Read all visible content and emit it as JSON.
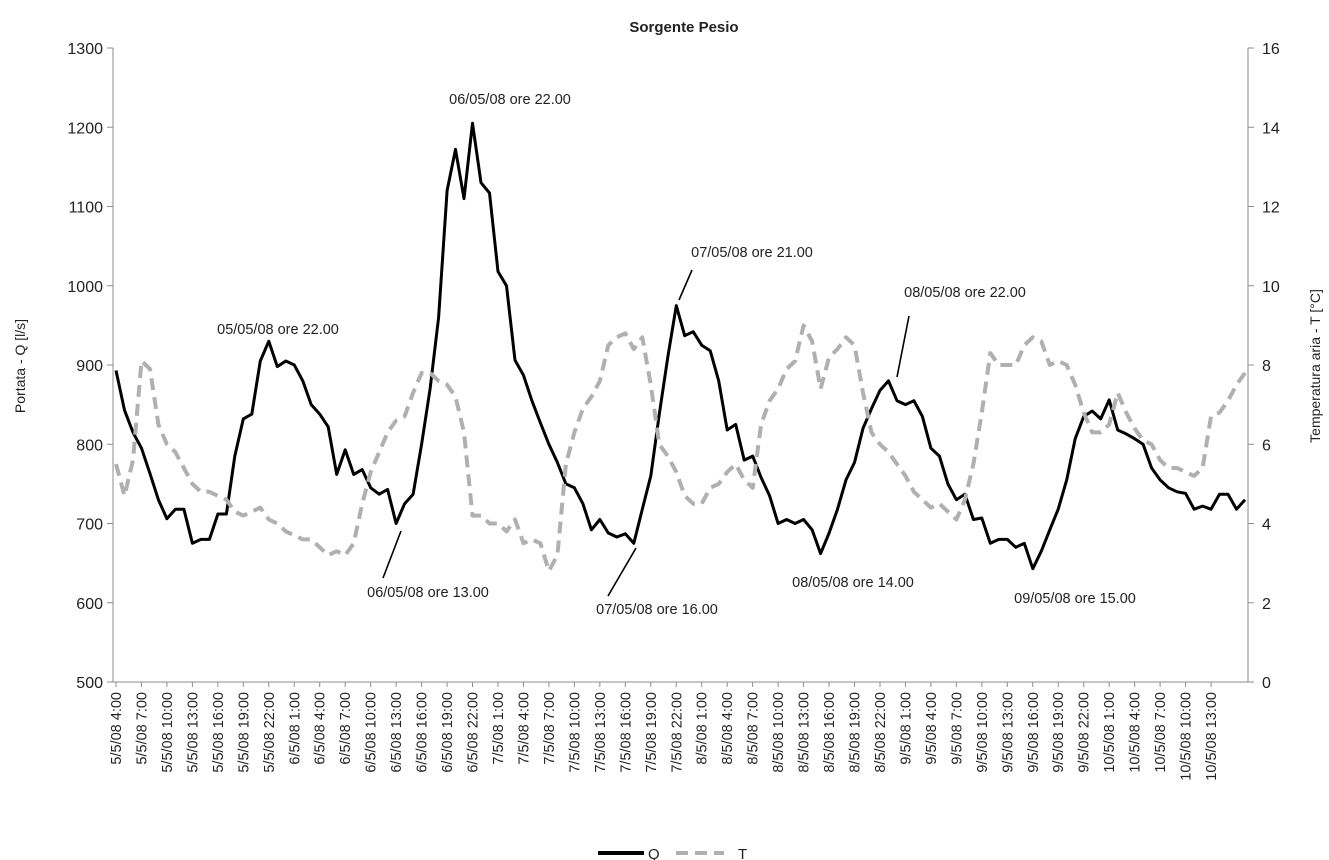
{
  "chart_data": {
    "type": "line",
    "title": "Sorgente Pesio",
    "ylabel": "Portata - Q [l/s]",
    "y2label": "Temperatura aria - T [°C]",
    "ylim": [
      500,
      1300
    ],
    "y2lim": [
      0,
      16
    ],
    "y_ticks": [
      "500",
      "600",
      "700",
      "800",
      "900",
      "1000",
      "1100",
      "1200",
      "1300"
    ],
    "y2_ticks": [
      "0",
      "2",
      "4",
      "6",
      "8",
      "10",
      "12",
      "14",
      "16"
    ],
    "x_tick_labels": [
      "5/5/08 4:00",
      "5/5/08 7:00",
      "5/5/08 10:00",
      "5/5/08 13:00",
      "5/5/08 16:00",
      "5/5/08 19:00",
      "5/5/08 22:00",
      "6/5/08 1:00",
      "6/5/08 4:00",
      "6/5/08 7:00",
      "6/5/08 10:00",
      "6/5/08 13:00",
      "6/5/08 16:00",
      "6/5/08 19:00",
      "6/5/08 22:00",
      "7/5/08 1:00",
      "7/5/08 4:00",
      "7/5/08 7:00",
      "7/5/08 10:00",
      "7/5/08 13:00",
      "7/5/08 16:00",
      "7/5/08 19:00",
      "7/5/08 22:00",
      "8/5/08 1:00",
      "8/5/08 4:00",
      "8/5/08 7:00",
      "8/5/08 10:00",
      "8/5/08 13:00",
      "8/5/08 16:00",
      "8/5/08 19:00",
      "8/5/08 22:00",
      "9/5/08 1:00",
      "9/5/08 4:00",
      "9/5/08 7:00",
      "9/5/08 10:00",
      "9/5/08 13:00",
      "9/5/08 16:00",
      "9/5/08 19:00",
      "9/5/08 22:00",
      "10/5/08 1:00",
      "10/5/08 4:00",
      "10/5/08 7:00",
      "10/5/08 10:00",
      "10/5/08 13:00"
    ],
    "series": [
      {
        "name": "Q",
        "axis": "left",
        "style": "solid",
        "color": "#000000",
        "values": [
          893,
          843,
          815,
          795,
          763,
          730,
          706,
          718,
          718,
          675,
          680,
          680,
          712,
          712,
          785,
          832,
          838,
          905,
          930,
          898,
          905,
          900,
          880,
          850,
          838,
          822,
          762,
          793,
          762,
          768,
          745,
          737,
          743,
          700,
          725,
          737,
          800,
          870,
          960,
          1120,
          1172,
          1110,
          1205,
          1130,
          1117,
          1018,
          1000,
          906,
          887,
          855,
          827,
          800,
          777,
          750,
          745,
          725,
          692,
          705,
          688,
          683,
          687,
          675,
          718,
          760,
          838,
          910,
          975,
          937,
          942,
          925,
          918,
          880,
          818,
          825,
          780,
          785,
          758,
          735,
          700,
          705,
          700,
          705,
          692,
          662,
          688,
          718,
          755,
          777,
          820,
          845,
          868,
          880,
          855,
          850,
          855,
          835,
          795,
          785,
          750,
          730,
          737,
          705,
          707,
          675,
          680,
          680,
          670,
          675,
          643,
          665,
          692,
          718,
          755,
          807,
          835,
          842,
          832,
          856,
          818,
          813,
          807,
          800,
          770,
          755,
          745,
          740,
          738,
          718,
          722,
          718,
          737,
          737,
          718,
          730
        ]
      },
      {
        "name": "T",
        "axis": "right",
        "style": "dashed",
        "color": "#b0b0b0",
        "values": [
          5.5,
          4.7,
          5.6,
          8.1,
          7.9,
          6.5,
          6.0,
          5.8,
          5.4,
          5.0,
          4.8,
          4.8,
          4.7,
          4.6,
          4.3,
          4.2,
          4.3,
          4.4,
          4.1,
          4.0,
          3.8,
          3.7,
          3.6,
          3.6,
          3.4,
          3.2,
          3.3,
          3.2,
          3.5,
          4.5,
          5.3,
          5.8,
          6.3,
          6.6,
          6.7,
          7.3,
          7.8,
          7.8,
          7.6,
          7.5,
          7.2,
          6.3,
          4.2,
          4.2,
          4.0,
          4.0,
          3.8,
          4.1,
          3.5,
          3.6,
          3.5,
          2.8,
          3.2,
          5.5,
          6.3,
          6.9,
          7.2,
          7.6,
          8.5,
          8.7,
          8.8,
          8.4,
          8.7,
          7.5,
          6.0,
          5.7,
          5.3,
          4.7,
          4.5,
          4.5,
          4.9,
          5.0,
          5.3,
          5.5,
          5.1,
          4.9,
          6.5,
          7.1,
          7.4,
          7.9,
          8.1,
          9.0,
          8.6,
          7.4,
          8.2,
          8.4,
          8.7,
          8.5,
          7.3,
          6.3,
          6.0,
          5.8,
          5.5,
          5.2,
          4.8,
          4.6,
          4.4,
          4.5,
          4.3,
          4.1,
          4.6,
          5.5,
          6.8,
          8.3,
          8.0,
          8.0,
          8.0,
          8.5,
          8.7,
          8.6,
          8.0,
          8.1,
          8.0,
          7.5,
          6.8,
          6.3,
          6.3,
          6.5,
          7.3,
          6.8,
          6.4,
          6.1,
          6.0,
          5.6,
          5.4,
          5.4,
          5.3,
          5.2,
          5.4,
          6.7,
          6.8,
          7.1,
          7.5,
          7.8
        ]
      }
    ],
    "annotations": [
      {
        "text": "05/05/08 ore 22.00"
      },
      {
        "text": "06/05/08 ore 22.00"
      },
      {
        "text": "07/05/08 ore 21.00"
      },
      {
        "text": "08/05/08 ore 22.00"
      },
      {
        "text": "06/05/08 ore 13.00"
      },
      {
        "text": "07/05/08 ore 16.00"
      },
      {
        "text": "08/05/08 ore 14.00"
      },
      {
        "text": "09/05/08 ore 15.00"
      }
    ],
    "legend": {
      "position": "bottom",
      "entries": [
        "Q",
        "T"
      ]
    },
    "grid": false
  }
}
